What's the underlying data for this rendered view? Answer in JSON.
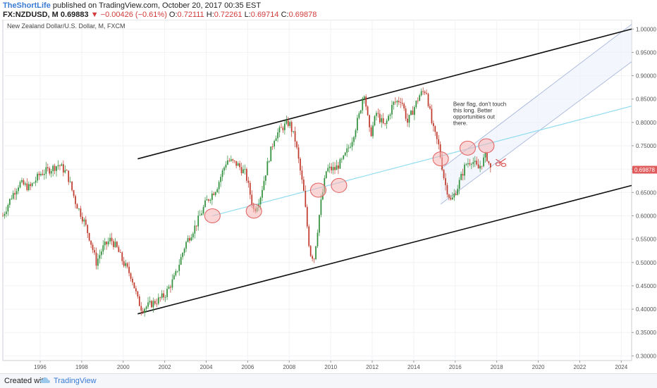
{
  "header": {
    "author": "TheShortLife",
    "published_text": "published on TradingView.com, October 20, 2017 00:35 EST",
    "symbol": "FX:NZDUSD, M",
    "last_price": "0.69883",
    "change": "−0.00426 (−0.61%)",
    "open_label": "O:",
    "open": "0.72111",
    "high_label": "H:",
    "high": "0.72261",
    "low_label": "L:",
    "low": "0.69714",
    "close_label": "C:",
    "close": "0.69878"
  },
  "footer": {
    "created_with": "Created with",
    "brand": "TradingView"
  },
  "colors": {
    "up": "#2f8f3a",
    "down": "#c0392b",
    "channel": "#111111",
    "midline": "#8fdcf0",
    "circle_fill": "#f5b5b5",
    "circle_stroke": "#e05c5c",
    "price_tag": "#e05c5c",
    "small_channel_fill": "#eef2fb",
    "small_channel_line": "#9fb0d8"
  },
  "chart_data": {
    "type": "candlestick",
    "title": "New Zealand Dollar/U.S. Dollar, M, FXCM",
    "x_ticks": [
      "1996",
      "1998",
      "2000",
      "2002",
      "2004",
      "2006",
      "2008",
      "2010",
      "2012",
      "2014",
      "2016",
      "2018",
      "2020",
      "2022",
      "2024"
    ],
    "y_ticks": [
      "1.00000",
      "0.95000",
      "0.90000",
      "0.85000",
      "0.80000",
      "0.75000",
      "0.70000",
      "0.65000",
      "0.60000",
      "0.55000",
      "0.50000",
      "0.45000",
      "0.40000",
      "0.35000",
      "0.30000"
    ],
    "ylim": [
      0.29,
      1.02
    ],
    "xlim": [
      1994.2,
      2024.5
    ],
    "current_price": "0.69878",
    "annotation": "Bear flag, don't touch this long. Better opportunities out there.",
    "price_path": [
      [
        1994.2,
        0.6
      ],
      [
        1994.6,
        0.64
      ],
      [
        1995.0,
        0.67
      ],
      [
        1995.5,
        0.66
      ],
      [
        1996.0,
        0.69
      ],
      [
        1996.5,
        0.7
      ],
      [
        1996.9,
        0.71
      ],
      [
        1997.3,
        0.69
      ],
      [
        1997.7,
        0.63
      ],
      [
        1998.1,
        0.59
      ],
      [
        1998.4,
        0.55
      ],
      [
        1998.7,
        0.5
      ],
      [
        1999.0,
        0.53
      ],
      [
        1999.4,
        0.55
      ],
      [
        1999.7,
        0.53
      ],
      [
        2000.0,
        0.5
      ],
      [
        2000.4,
        0.47
      ],
      [
        2000.7,
        0.42
      ],
      [
        2000.9,
        0.4
      ],
      [
        2001.3,
        0.41
      ],
      [
        2001.7,
        0.42
      ],
      [
        2002.0,
        0.43
      ],
      [
        2002.5,
        0.47
      ],
      [
        2003.0,
        0.54
      ],
      [
        2003.5,
        0.58
      ],
      [
        2004.0,
        0.63
      ],
      [
        2004.5,
        0.66
      ],
      [
        2005.0,
        0.72
      ],
      [
        2005.5,
        0.71
      ],
      [
        2005.9,
        0.69
      ],
      [
        2006.3,
        0.61
      ],
      [
        2006.6,
        0.64
      ],
      [
        2007.0,
        0.72
      ],
      [
        2007.3,
        0.77
      ],
      [
        2007.7,
        0.79
      ],
      [
        2008.0,
        0.8
      ],
      [
        2008.3,
        0.76
      ],
      [
        2008.7,
        0.65
      ],
      [
        2009.0,
        0.52
      ],
      [
        2009.2,
        0.51
      ],
      [
        2009.5,
        0.62
      ],
      [
        2009.8,
        0.7
      ],
      [
        2010.2,
        0.7
      ],
      [
        2010.6,
        0.72
      ],
      [
        2011.0,
        0.76
      ],
      [
        2011.4,
        0.82
      ],
      [
        2011.6,
        0.87
      ],
      [
        2011.9,
        0.77
      ],
      [
        2012.2,
        0.82
      ],
      [
        2012.6,
        0.79
      ],
      [
        2013.0,
        0.84
      ],
      [
        2013.4,
        0.85
      ],
      [
        2013.7,
        0.8
      ],
      [
        2014.0,
        0.83
      ],
      [
        2014.3,
        0.86
      ],
      [
        2014.6,
        0.87
      ],
      [
        2014.9,
        0.79
      ],
      [
        2015.2,
        0.75
      ],
      [
        2015.5,
        0.67
      ],
      [
        2015.8,
        0.63
      ],
      [
        2016.1,
        0.66
      ],
      [
        2016.5,
        0.71
      ],
      [
        2016.8,
        0.72
      ],
      [
        2017.1,
        0.7
      ],
      [
        2017.5,
        0.73
      ],
      [
        2017.7,
        0.7
      ]
    ],
    "lines": {
      "channel_upper": [
        [
          2000.7,
          0.722
        ],
        [
          2024.5,
          1.0
        ]
      ],
      "channel_lower": [
        [
          2000.7,
          0.39
        ],
        [
          2024.5,
          0.665
        ]
      ],
      "midline": [
        [
          2004.3,
          0.6
        ],
        [
          2024.5,
          0.835
        ]
      ],
      "small_channel_top": [
        [
          2015.3,
          0.7
        ],
        [
          2024.5,
          1.01
        ]
      ],
      "small_channel_bottom": [
        [
          2015.3,
          0.625
        ],
        [
          2024.5,
          0.93
        ]
      ]
    },
    "circles": [
      [
        2004.3,
        0.6
      ],
      [
        2006.3,
        0.61
      ],
      [
        2009.4,
        0.655
      ],
      [
        2010.4,
        0.665
      ],
      [
        2015.3,
        0.722
      ],
      [
        2016.6,
        0.745
      ],
      [
        2017.5,
        0.75
      ]
    ]
  }
}
